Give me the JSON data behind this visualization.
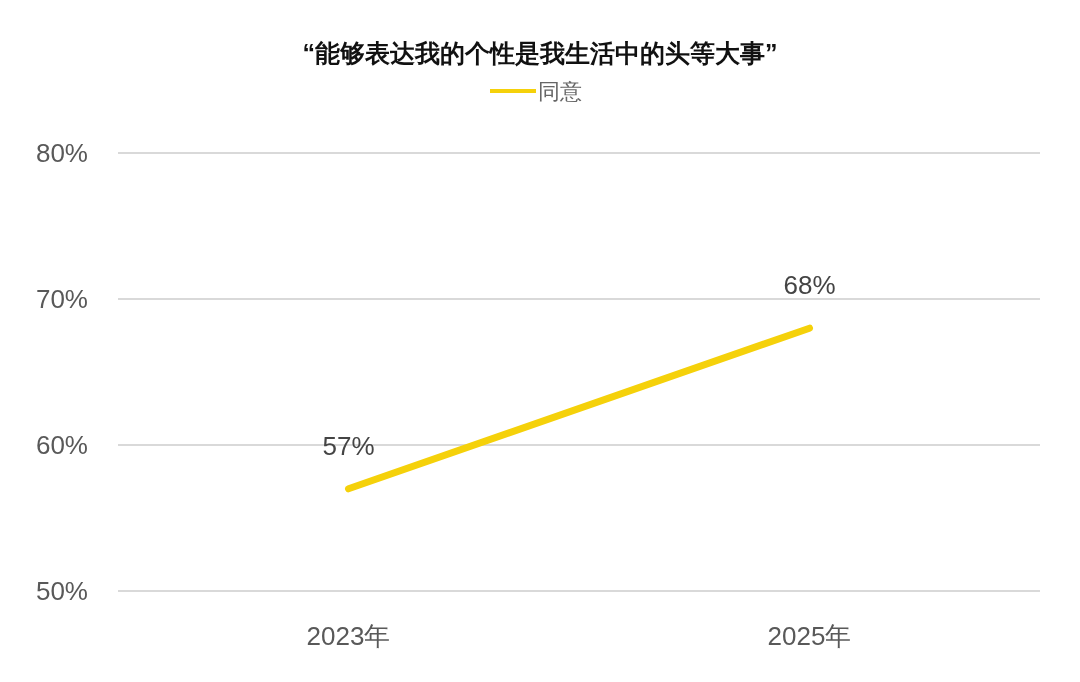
{
  "chart_data": {
    "type": "line",
    "title": "“能够表达我的个性是我生活中的头等大事”",
    "categories": [
      "2023年",
      "2025年"
    ],
    "series": [
      {
        "name": "同意",
        "color": "#f5d10a",
        "values": [
          57,
          68
        ],
        "value_labels": [
          "57%",
          "68%"
        ]
      }
    ],
    "ylim": [
      50,
      80
    ],
    "yticks": [
      {
        "value": 50,
        "label": "50%"
      },
      {
        "value": 60,
        "label": "60%"
      },
      {
        "value": 70,
        "label": "70%"
      },
      {
        "value": 80,
        "label": "80%"
      }
    ],
    "grid": "y",
    "legend": "top",
    "marker": "none",
    "line_style": "solid"
  }
}
